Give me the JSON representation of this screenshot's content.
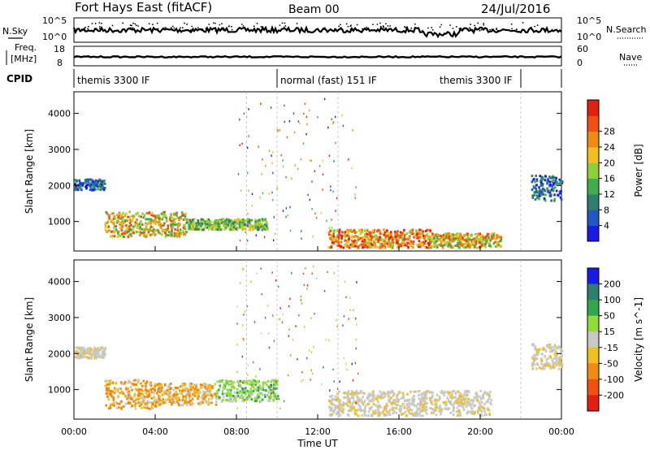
{
  "header": {
    "station": "Fort Hays East (fitACF)",
    "beam": "Beam 00",
    "date": "24/Jul/2016"
  },
  "side_labels": {
    "nsky": "N.Sky",
    "nsearch": "N.Search",
    "freq_line1": "Freq.",
    "freq_line2": "[MHz]",
    "nave": "Nave",
    "cpid": "CPID"
  },
  "noise_axis": {
    "left_top": "10^5",
    "left_bottom": "10^0",
    "right_top": "10^5",
    "right_bottom": "10^0"
  },
  "freq_axis": {
    "left_top": "18",
    "left_bottom": "8",
    "right_top": "60",
    "right_bottom": "0"
  },
  "cpid_segments": [
    {
      "label": "themis 3300 IF",
      "start_hour": 0,
      "end_hour": 10
    },
    {
      "label": "normal (fast) 151 IF",
      "start_hour": 10,
      "end_hour": 22
    },
    {
      "label": "themis 3300 IF",
      "start_hour": 22,
      "end_hour": 24
    }
  ],
  "x_axis": {
    "label": "Time UT",
    "range_hours": [
      0,
      24
    ],
    "ticks": [
      "00:00",
      "04:00",
      "08:00",
      "12:00",
      "16:00",
      "20:00",
      "00:00"
    ]
  },
  "chart_data": [
    {
      "type": "heatmap",
      "title": "Power",
      "ylabel": "Slant Range [km]",
      "ylim": [
        180,
        4600
      ],
      "yticks": [
        1000,
        2000,
        3000,
        4000
      ],
      "colorbar": {
        "label": "Power [dB]",
        "ticks": [
          "4",
          "8",
          "12",
          "16",
          "20",
          "24",
          "28"
        ],
        "colors": [
          "#1a1ae6",
          "#2255c8",
          "#2e7d6e",
          "#3fae4a",
          "#8fcf3a",
          "#f0c020",
          "#f08a10",
          "#f05010",
          "#e02010"
        ]
      },
      "regions": [
        {
          "start_hour": 0.0,
          "end_hour": 1.5,
          "range_min": 1900,
          "range_max": 2200,
          "level": "low"
        },
        {
          "start_hour": 1.5,
          "end_hour": 5.5,
          "range_min": 600,
          "range_max": 1300,
          "level": "mid-high"
        },
        {
          "start_hour": 5.5,
          "end_hour": 9.5,
          "range_min": 800,
          "range_max": 1100,
          "level": "mid"
        },
        {
          "start_hour": 12.5,
          "end_hour": 17.5,
          "range_min": 300,
          "range_max": 800,
          "level": "high"
        },
        {
          "start_hour": 17.5,
          "end_hour": 21.0,
          "range_min": 300,
          "range_max": 700,
          "level": "mid-high"
        },
        {
          "start_hour": 22.5,
          "end_hour": 24.0,
          "range_min": 1600,
          "range_max": 2300,
          "level": "low"
        }
      ]
    },
    {
      "type": "heatmap",
      "title": "Velocity",
      "ylabel": "Slant Range [km]",
      "ylim": [
        180,
        4600
      ],
      "yticks": [
        1000,
        2000,
        3000,
        4000
      ],
      "colorbar": {
        "label": "Velocity [m s^-1]",
        "ticks": [
          "200",
          "100",
          "50",
          "15",
          "-15",
          "-50",
          "-100",
          "-200"
        ],
        "colors": [
          "#1a1ae6",
          "#2e7d6e",
          "#2fa84a",
          "#8fdc3a",
          "#c8c8c4",
          "#f0c020",
          "#f08a10",
          "#f05010",
          "#e02010"
        ]
      },
      "regions": [
        {
          "start_hour": 0.0,
          "end_hour": 1.5,
          "range_min": 1900,
          "range_max": 2200,
          "level": "gray"
        },
        {
          "start_hour": 1.5,
          "end_hour": 4.0,
          "range_min": 500,
          "range_max": 1300,
          "level": "orange"
        },
        {
          "start_hour": 4.0,
          "end_hour": 7.0,
          "range_min": 600,
          "range_max": 1200,
          "level": "orange"
        },
        {
          "start_hour": 7.0,
          "end_hour": 10.0,
          "range_min": 700,
          "range_max": 1300,
          "level": "green"
        },
        {
          "start_hour": 12.5,
          "end_hour": 20.5,
          "range_min": 300,
          "range_max": 1000,
          "level": "gray"
        },
        {
          "start_hour": 22.5,
          "end_hour": 24.0,
          "range_min": 1600,
          "range_max": 2300,
          "level": "gray"
        }
      ]
    }
  ]
}
